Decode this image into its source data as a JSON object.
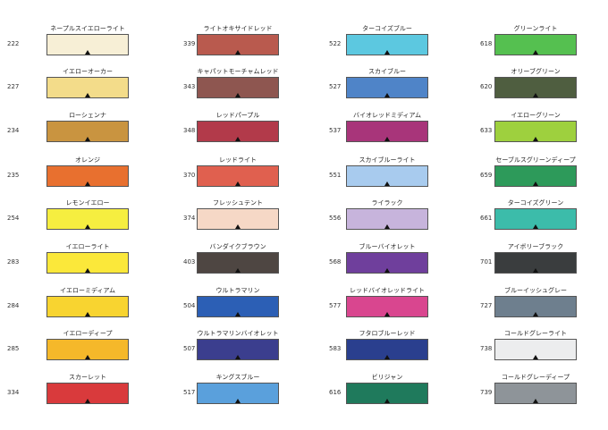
{
  "columns": [
    [
      {
        "code": "222",
        "name": "ネープルスイエローライト",
        "color": "#f7efd6"
      },
      {
        "code": "227",
        "name": "イエローオーカー",
        "color": "#f3dc8a"
      },
      {
        "code": "234",
        "name": "ローシェンナ",
        "color": "#c99440"
      },
      {
        "code": "235",
        "name": "オレンジ",
        "color": "#e8702f"
      },
      {
        "code": "254",
        "name": "レモンイエロー",
        "color": "#f6ee40"
      },
      {
        "code": "283",
        "name": "イエローライト",
        "color": "#fbe83a"
      },
      {
        "code": "284",
        "name": "イエローミディアム",
        "color": "#f8d430"
      },
      {
        "code": "285",
        "name": "イエローディープ",
        "color": "#f5b82a"
      },
      {
        "code": "334",
        "name": "スカーレット",
        "color": "#d93a3c"
      }
    ],
    [
      {
        "code": "339",
        "name": "ライトオキサイドレッド",
        "color": "#b95a4e"
      },
      {
        "code": "343",
        "name": "キャパットモーチャムレッド",
        "color": "#8e5650"
      },
      {
        "code": "348",
        "name": "レッドパープル",
        "color": "#b23a4a"
      },
      {
        "code": "370",
        "name": "レッドライト",
        "color": "#e0604f"
      },
      {
        "code": "374",
        "name": "フレッシュテント",
        "color": "#f6d8c6"
      },
      {
        "code": "403",
        "name": "バンダイクブラウン",
        "color": "#4e4642"
      },
      {
        "code": "504",
        "name": "ウルトラマリン",
        "color": "#2c5fb5"
      },
      {
        "code": "507",
        "name": "ウルトラマリンバイオレット",
        "color": "#3b3e8e"
      },
      {
        "code": "517",
        "name": "キングスブルー",
        "color": "#5aa0dc"
      }
    ],
    [
      {
        "code": "522",
        "name": "ターコイズブルー",
        "color": "#5cc8e0"
      },
      {
        "code": "527",
        "name": "スカイブルー",
        "color": "#4f84c8"
      },
      {
        "code": "537",
        "name": "バイオレッドミディアム",
        "color": "#a8357a"
      },
      {
        "code": "551",
        "name": "スカイブルーライト",
        "color": "#a8cbee"
      },
      {
        "code": "556",
        "name": "ライラック",
        "color": "#c7b4dc"
      },
      {
        "code": "568",
        "name": "ブルーバイオレット",
        "color": "#6f3f9c"
      },
      {
        "code": "577",
        "name": "レッドバイオレッドライト",
        "color": "#d9468f"
      },
      {
        "code": "583",
        "name": "フタロブルーレッド",
        "color": "#2a3f8e"
      },
      {
        "code": "616",
        "name": "ビリジャン",
        "color": "#1f7a5c"
      }
    ],
    [
      {
        "code": "618",
        "name": "グリーンライト",
        "color": "#55c050"
      },
      {
        "code": "620",
        "name": "オリーブグリーン",
        "color": "#4f5e40"
      },
      {
        "code": "633",
        "name": "イエローグリーン",
        "color": "#9ed03e"
      },
      {
        "code": "659",
        "name": "セーブルスグリーンディープ",
        "color": "#2d9a5a"
      },
      {
        "code": "661",
        "name": "ターコイズグリーン",
        "color": "#3cbcaa"
      },
      {
        "code": "701",
        "name": "アイボリーブラック",
        "color": "#3a3d3e"
      },
      {
        "code": "727",
        "name": "ブルーイッシュグレー",
        "color": "#6e7f8e"
      },
      {
        "code": "738",
        "name": "コールドグレーライト",
        "color": "#ecedee"
      },
      {
        "code": "739",
        "name": "コールドグレーディープ",
        "color": "#8e9499"
      }
    ]
  ]
}
